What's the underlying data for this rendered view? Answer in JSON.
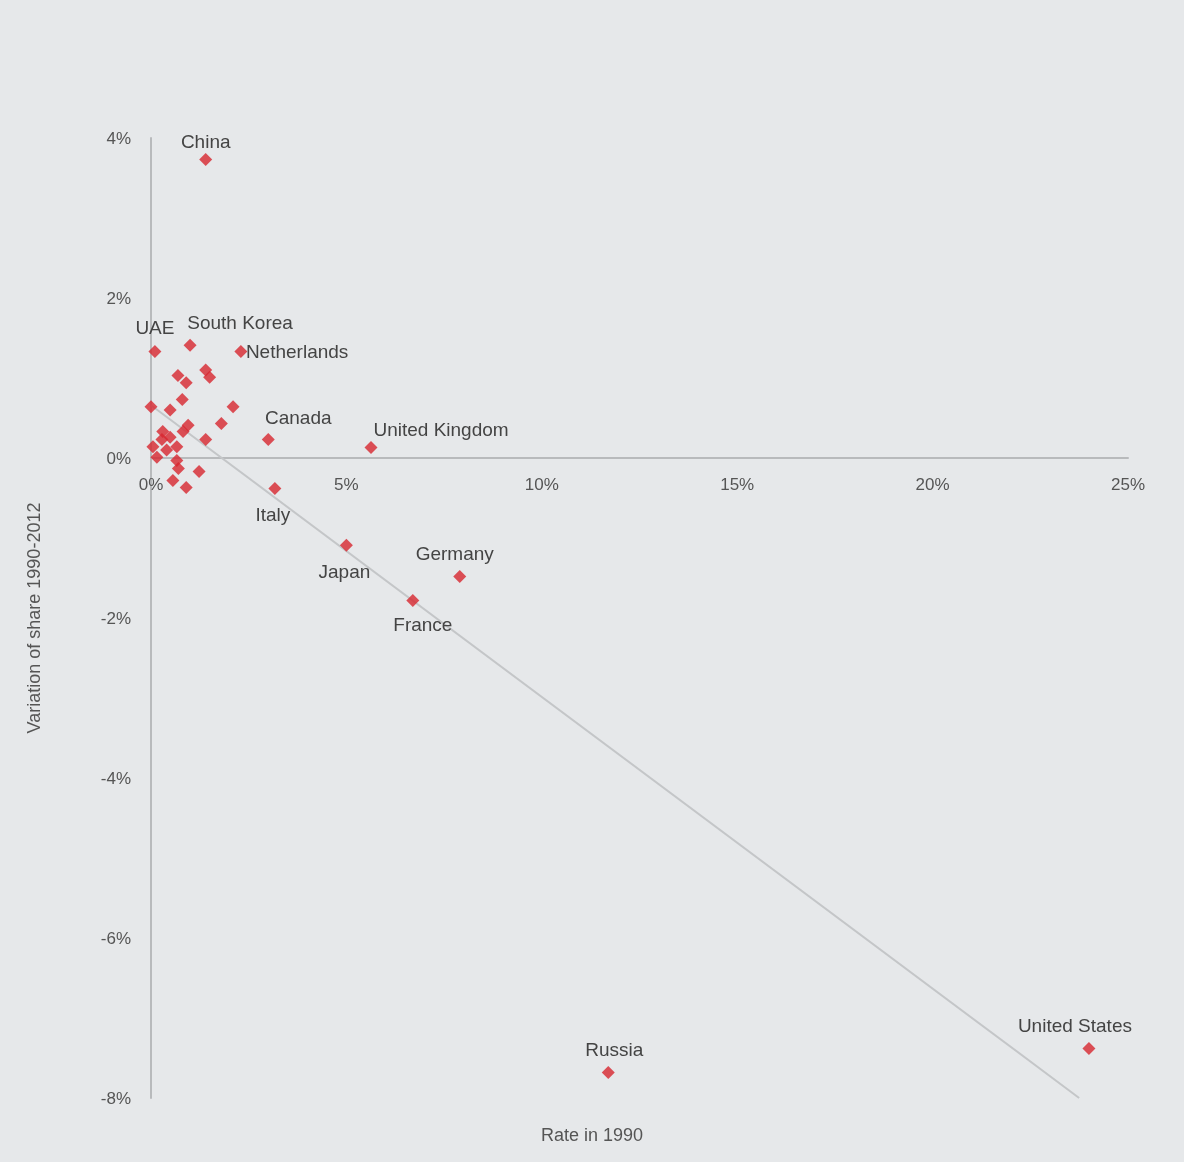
{
  "chart_data": {
    "type": "scatter",
    "xlabel": "Rate in 1990",
    "ylabel": "Variation of share 1990-2012",
    "xlim": [
      0,
      25
    ],
    "ylim": [
      -8,
      4
    ],
    "xticks": [
      {
        "value": 0,
        "label": "0%"
      },
      {
        "value": 5,
        "label": "5%"
      },
      {
        "value": 10,
        "label": "10%"
      },
      {
        "value": 15,
        "label": "15%"
      },
      {
        "value": 20,
        "label": "20%"
      },
      {
        "value": 25,
        "label": "25%"
      }
    ],
    "yticks": [
      {
        "value": -8,
        "label": "-8%"
      },
      {
        "value": -6,
        "label": "-6%"
      },
      {
        "value": -4,
        "label": "-4%"
      },
      {
        "value": -2,
        "label": "-2%"
      },
      {
        "value": 0,
        "label": "0%"
      },
      {
        "value": 2,
        "label": "2%"
      },
      {
        "value": 4,
        "label": "4%"
      }
    ],
    "marker": "diamond",
    "series": [
      {
        "color": "#d7262e",
        "x": [
          1.4,
          0.1,
          1.0,
          2.3,
          3.0,
          5.63,
          3.17,
          5.0,
          7.9,
          6.7,
          11.7,
          24.0,
          0.69,
          0.9,
          1.4,
          1.5,
          0,
          2.1,
          0.49,
          0.8,
          0.95,
          1.8,
          1.4,
          0.05,
          0.28,
          0.49,
          0.4,
          0.66,
          0.15,
          0.66,
          0.7,
          0.56,
          1.23,
          0.9,
          0.82,
          0.3
        ],
        "values": [
          3.73,
          1.33,
          1.41,
          1.33,
          0.23,
          0.13,
          -0.38,
          -1.09,
          -1.48,
          -1.78,
          -7.68,
          -7.38,
          1.03,
          0.94,
          1.1,
          1.01,
          0.64,
          0.64,
          0.6,
          0.73,
          0.41,
          0.43,
          0.23,
          0.14,
          0.23,
          0.26,
          0.1,
          0.14,
          0.01,
          -0.03,
          -0.13,
          -0.28,
          -0.17,
          -0.37,
          0.33,
          0.33
        ]
      },
      {
        "type": "line",
        "marker": "none",
        "color": "#c4c6c8",
        "x": [
          0,
          23.75
        ],
        "values": [
          0.66,
          -8
        ]
      }
    ],
    "annotations": [
      {
        "text": "China",
        "x": 1.4,
        "y": 3.73
      },
      {
        "text": "UAE",
        "x": 0.1,
        "y": 1.33
      },
      {
        "text": "South Korea",
        "x": 1.0,
        "y": 1.41
      },
      {
        "text": "Netherlands",
        "x": 2.3,
        "y": 1.33
      },
      {
        "text": "Canada",
        "x": 3.0,
        "y": 0.23
      },
      {
        "text": "United Kingdom",
        "x": 5.63,
        "y": 0.13
      },
      {
        "text": "Italy",
        "x": 3.17,
        "y": -0.38
      },
      {
        "text": "Japan",
        "x": 5.0,
        "y": -1.09
      },
      {
        "text": "Germany",
        "x": 7.9,
        "y": -1.48
      },
      {
        "text": "France",
        "x": 6.7,
        "y": -1.78
      },
      {
        "text": "Russia",
        "x": 11.7,
        "y": -7.68
      },
      {
        "text": "United States",
        "x": 24.0,
        "y": -7.38
      }
    ]
  }
}
